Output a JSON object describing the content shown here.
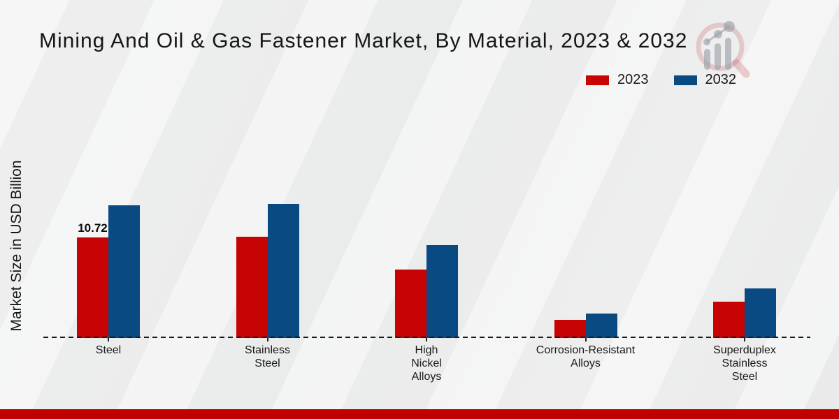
{
  "title": "Mining And Oil & Gas Fastener Market, By Material, 2023 & 2032",
  "y_axis_label": "Market Size in USD Billion",
  "legend": {
    "items": [
      {
        "label": "2023",
        "color": "#c70303"
      },
      {
        "label": "2032",
        "color": "#0a4a82"
      }
    ]
  },
  "colors": {
    "series_2023": "#c70303",
    "series_2032": "#0a4a82",
    "background": "#ecedec",
    "bottom_bar": "#c00000",
    "baseline": "#191919",
    "text": "#1a1a1a"
  },
  "watermark_icon": "magnifier-bar-chart-logo",
  "chart_data": {
    "type": "bar",
    "title": "Mining And Oil & Gas Fastener Market, By Material, 2023 & 2032",
    "xlabel": "",
    "ylabel": "Market Size in USD Billion",
    "categories": [
      "Steel",
      "Stainless Steel",
      "High Nickel Alloys",
      "Corrosion-Resistant Alloys",
      "Superduplex Stainless Steel"
    ],
    "category_label_lines": [
      [
        "Steel"
      ],
      [
        "Stainless",
        "Steel"
      ],
      [
        "High",
        "Nickel",
        "Alloys"
      ],
      [
        "Corrosion-Resistant",
        "Alloys"
      ],
      [
        "Superduplex",
        "Stainless",
        "Steel"
      ]
    ],
    "series": [
      {
        "name": "2023",
        "color": "#c70303",
        "values": [
          10.72,
          10.83,
          7.3,
          1.97,
          3.87
        ]
      },
      {
        "name": "2032",
        "color": "#0a4a82",
        "values": [
          14.14,
          14.26,
          9.9,
          2.58,
          5.29
        ]
      }
    ],
    "ylim": [
      0,
      16
    ],
    "grid": false,
    "legend_position": "top-right",
    "baseline_style": "dashed",
    "data_labels": [
      {
        "series": "2023",
        "category": "Steel",
        "text": "10.72"
      }
    ]
  }
}
